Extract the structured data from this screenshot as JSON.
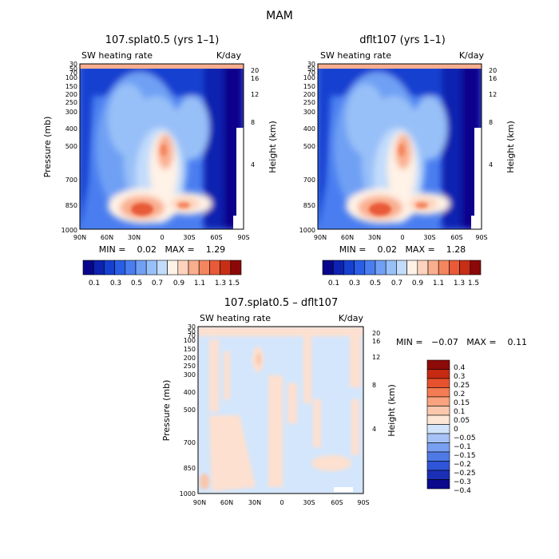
{
  "page_title": "MAM",
  "colors": {
    "diff_blue": "#d4e6fb",
    "diff_orange": "#fde0d0",
    "cb_sequential": [
      "#08068c",
      "#0c22b0",
      "#1640d0",
      "#2a5ee6",
      "#4a7ef0",
      "#6fa0f4",
      "#98c0f8",
      "#c2dcfb",
      "#fff2e6",
      "#fdd3bd",
      "#f9ae8e",
      "#f4865f",
      "#e85a38",
      "#c72e16",
      "#8c0808"
    ],
    "cb_diff": [
      "#0a0a8c",
      "#1a2fb6",
      "#2f55d8",
      "#4f7ae6",
      "#789ff0",
      "#a6c2f6",
      "#d2e4fb",
      "#fde6d6",
      "#fcc8ad",
      "#f9a47e",
      "#f47c52",
      "#e6522d",
      "#c62a12",
      "#8c0a08"
    ]
  },
  "chart_data": [
    {
      "type": "heatmap",
      "title": "107.splat0.5 (yrs 1–1)",
      "field_label": "SW heating rate",
      "units": "K/day",
      "xlabel": "",
      "ylabel": "Pressure (mb)",
      "y2label": "Height (km)",
      "x_ticks": [
        "90N",
        "60N",
        "30N",
        "0",
        "30S",
        "60S",
        "90S"
      ],
      "y_ticks": [
        "30",
        "50",
        "70",
        "100",
        "150",
        "200",
        "250",
        "300",
        "400",
        "500",
        "700",
        "850",
        "1000"
      ],
      "y2_ticks": [
        "20",
        "16",
        "12",
        "8",
        "4"
      ],
      "stats_text": "MIN =    0.02   MAX =    1.29",
      "colorbar_labels": [
        "0.1",
        "0.3",
        "0.5",
        "0.7",
        "0.9",
        "1.1",
        "1.3",
        "1.5"
      ]
    },
    {
      "type": "heatmap",
      "title": "dflt107 (yrs 1–1)",
      "field_label": "SW heating rate",
      "units": "K/day",
      "xlabel": "",
      "ylabel": "Pressure (mb)",
      "y2label": "Height (km)",
      "x_ticks": [
        "90N",
        "60N",
        "30N",
        "0",
        "30S",
        "60S",
        "90S"
      ],
      "y_ticks": [
        "30",
        "50",
        "70",
        "100",
        "150",
        "200",
        "250",
        "300",
        "400",
        "500",
        "700",
        "850",
        "1000"
      ],
      "y2_ticks": [
        "20",
        "16",
        "12",
        "8",
        "4"
      ],
      "stats_text": "MIN =    0.02   MAX =    1.28",
      "colorbar_labels": [
        "0.1",
        "0.3",
        "0.5",
        "0.7",
        "0.9",
        "1.1",
        "1.3",
        "1.5"
      ]
    },
    {
      "type": "heatmap",
      "title": "107.splat0.5 – dflt107",
      "field_label": "SW heating rate",
      "units": "K/day",
      "xlabel": "",
      "ylabel": "Pressure (mb)",
      "y2label": "Height (km)",
      "x_ticks": [
        "90N",
        "60N",
        "30N",
        "0",
        "30S",
        "60S",
        "90S"
      ],
      "y_ticks": [
        "30",
        "50",
        "70",
        "100",
        "150",
        "200",
        "250",
        "300",
        "400",
        "500",
        "700",
        "850",
        "1000"
      ],
      "y2_ticks": [
        "20",
        "16",
        "12",
        "8",
        "4"
      ],
      "stats_text": "MIN =   −0.07   MAX =    0.11",
      "colorbar_labels": [
        "0.4",
        "0.3",
        "0.25",
        "0.2",
        "0.15",
        "0.1",
        "0.05",
        "0",
        "−0.05",
        "−0.1",
        "−0.15",
        "−0.2",
        "−0.25",
        "−0.3",
        "−0.4"
      ]
    }
  ]
}
